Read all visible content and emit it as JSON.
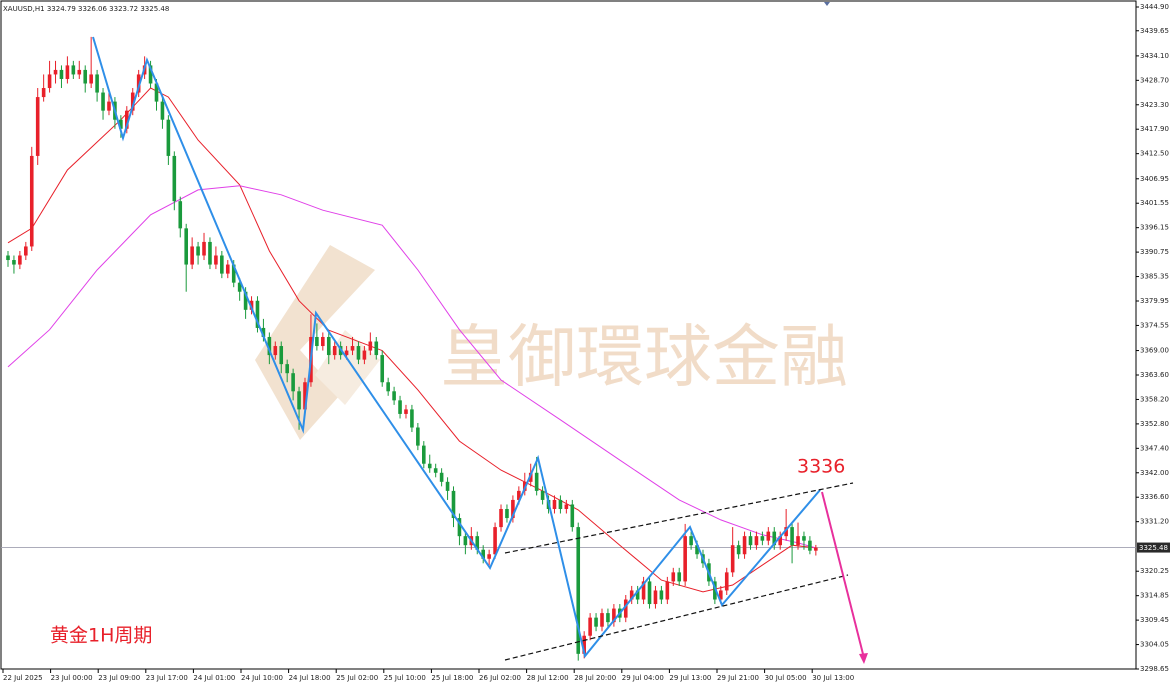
{
  "chart_data": {
    "type": "candlestick",
    "title": "XAUUSD,H1  3324.79 3326.06 3323.72 3325.48",
    "annotations": [
      "3336",
      "黄金1H周期"
    ],
    "watermark": "皇御環球金融",
    "up_color": "#e8202a",
    "down_color": "#1a9a3c",
    "ylim": [
      3298.65,
      3444.9
    ],
    "yticks": [
      {
        "value": 3444.9,
        "label": "3444.90"
      },
      3439.65,
      {
        "value": 3434.1,
        "label": "3434.10"
      },
      {
        "value": 3428.7,
        "label": "3428.70"
      },
      {
        "value": 3423.3,
        "label": "3423.30"
      },
      {
        "value": 3417.9,
        "label": "3417.90"
      },
      {
        "value": 3412.5,
        "label": "3412.50"
      },
      3406.95,
      3401.55,
      3396.15,
      3390.75,
      3385.35,
      3379.95,
      3374.55,
      {
        "value": 3369,
        "label": "3369.00"
      },
      {
        "value": 3363.6,
        "label": "3363.60"
      },
      {
        "value": 3358.2,
        "label": "3358.20"
      },
      {
        "value": 3352.8,
        "label": "3352.80"
      },
      {
        "value": 3347.4,
        "label": "3347.40"
      },
      {
        "value": 3342,
        "label": "3342.00"
      },
      {
        "value": 3336.6,
        "label": "3336.60"
      },
      {
        "value": 3331.2,
        "label": "3331.20"
      },
      3320.25,
      3314.85,
      3309.45,
      3304.05,
      3298.65
    ],
    "last_price": 3325.48,
    "x_labels": [
      "22 Jul 2025",
      "23 Jul 00:00",
      "23 Jul 09:00",
      "23 Jul 17:00",
      "24 Jul 01:00",
      "24 Jul 10:00",
      "24 Jul 18:00",
      "25 Jul 02:00",
      "25 Jul 10:00",
      "25 Jul 18:00",
      "26 Jul 02:00",
      "28 Jul 12:00",
      "28 Jul 20:00",
      "29 Jul 04:00",
      "29 Jul 13:00",
      "29 Jul 21:00",
      "30 Jul 05:00",
      "30 Jul 13:00"
    ],
    "ohlc": [
      [
        3390,
        3391,
        3387.5,
        3389
      ],
      [
        3389,
        3390,
        3386,
        3388
      ],
      [
        3388,
        3391,
        3387,
        3390
      ],
      [
        3390,
        3393,
        3389,
        3392
      ],
      [
        3392,
        3414,
        3391,
        3412
      ],
      [
        3412,
        3427,
        3410,
        3425
      ],
      [
        3425,
        3430,
        3424,
        3427
      ],
      [
        3427,
        3433,
        3426,
        3430
      ],
      [
        3430,
        3433,
        3428,
        3431
      ],
      [
        3431,
        3432,
        3427,
        3429
      ],
      [
        3429,
        3434,
        3428,
        3432
      ],
      [
        3432,
        3433,
        3429,
        3430
      ],
      [
        3430,
        3433,
        3429,
        3431
      ],
      [
        3431,
        3432,
        3426,
        3428
      ],
      [
        3428,
        3438.3,
        3427,
        3430
      ],
      [
        3430,
        3431,
        3424,
        3426
      ],
      [
        3426,
        3427,
        3420,
        3422
      ],
      [
        3422,
        3426,
        3421,
        3424
      ],
      [
        3424,
        3425,
        3418,
        3420
      ],
      [
        3420,
        3421,
        3416,
        3418
      ],
      [
        3418,
        3423,
        3417,
        3422
      ],
      [
        3422,
        3427,
        3421,
        3426
      ],
      [
        3426,
        3431,
        3425,
        3430
      ],
      [
        3430,
        3434,
        3429,
        3432
      ],
      [
        3432,
        3433,
        3427,
        3428
      ],
      [
        3428,
        3429,
        3422,
        3424
      ],
      [
        3424,
        3425,
        3418,
        3420
      ],
      [
        3420,
        3421,
        3410,
        3412
      ],
      [
        3412,
        3413,
        3400,
        3402
      ],
      [
        3402,
        3403,
        3394,
        3396
      ],
      [
        3396,
        3397,
        3382,
        3388
      ],
      [
        3388,
        3394,
        3387,
        3392
      ],
      [
        3392,
        3393,
        3388,
        3390
      ],
      [
        3390,
        3395,
        3389,
        3393
      ],
      [
        3393,
        3394,
        3387,
        3388
      ],
      [
        3388,
        3392,
        3387,
        3390
      ],
      [
        3390,
        3391,
        3385,
        3386
      ],
      [
        3386,
        3389,
        3385,
        3388
      ],
      [
        3388,
        3389,
        3383,
        3384
      ],
      [
        3384,
        3385,
        3380,
        3382
      ],
      [
        3382,
        3383,
        3376,
        3378
      ],
      [
        3378,
        3381,
        3377,
        3380
      ],
      [
        3380,
        3381,
        3373,
        3374
      ],
      [
        3374,
        3376,
        3371,
        3372
      ],
      [
        3372,
        3373,
        3366,
        3368
      ],
      [
        3368,
        3371,
        3367,
        3370
      ],
      [
        3370,
        3371,
        3364,
        3366
      ],
      [
        3366,
        3367,
        3362,
        3364
      ],
      [
        3364,
        3365,
        3358,
        3360
      ],
      [
        3360,
        3361,
        3351.5,
        3356
      ],
      [
        3356,
        3363,
        3355,
        3362
      ],
      [
        3362,
        3377,
        3361,
        3372
      ],
      [
        3372,
        3375,
        3369,
        3370
      ],
      [
        3370,
        3373,
        3369,
        3372
      ],
      [
        3372,
        3373,
        3366,
        3368
      ],
      [
        3368,
        3371,
        3367,
        3370
      ],
      [
        3370,
        3371,
        3367,
        3368
      ],
      [
        3368,
        3370,
        3367,
        3369
      ],
      [
        3369,
        3372,
        3368,
        3370
      ],
      [
        3370,
        3371,
        3366,
        3367
      ],
      [
        3367,
        3370,
        3366,
        3369
      ],
      [
        3369,
        3373,
        3368,
        3371
      ],
      [
        3371,
        3372,
        3367,
        3368
      ],
      [
        3368,
        3369,
        3361,
        3362
      ],
      [
        3362,
        3363,
        3359,
        3360
      ],
      [
        3360,
        3361,
        3357,
        3358
      ],
      [
        3358,
        3359,
        3354,
        3355
      ],
      [
        3355,
        3357,
        3354,
        3356
      ],
      [
        3356,
        3357,
        3351,
        3352
      ],
      [
        3352,
        3353,
        3347,
        3348
      ],
      [
        3348,
        3349,
        3343,
        3344
      ],
      [
        3344,
        3346,
        3342,
        3343
      ],
      [
        3343,
        3344,
        3341,
        3342
      ],
      [
        3342,
        3343,
        3339,
        3340
      ],
      [
        3340,
        3341,
        3336,
        3338
      ],
      [
        3338,
        3339,
        3330,
        3332
      ],
      [
        3332,
        3333,
        3326,
        3328
      ],
      [
        3328,
        3329,
        3324,
        3326
      ],
      [
        3326,
        3330,
        3325,
        3328
      ],
      [
        3328,
        3329,
        3324,
        3325
      ],
      [
        3325,
        3326,
        3322,
        3323
      ],
      [
        3323,
        3325,
        3321.5,
        3324
      ],
      [
        3324,
        3331,
        3323,
        3330
      ],
      [
        3330,
        3335,
        3329,
        3334
      ],
      [
        3334,
        3335,
        3331,
        3332
      ],
      [
        3332,
        3337,
        3331,
        3336
      ],
      [
        3336,
        3339,
        3335,
        3338
      ],
      [
        3338,
        3342,
        3337,
        3340
      ],
      [
        3340,
        3344,
        3339,
        3342
      ],
      [
        3342,
        3345.5,
        3337,
        3338
      ],
      [
        3338,
        3339,
        3335,
        3336
      ],
      [
        3336,
        3337,
        3333,
        3334
      ],
      [
        3334,
        3337,
        3333,
        3336
      ],
      [
        3336,
        3337,
        3333,
        3334
      ],
      [
        3334,
        3336,
        3333,
        3335
      ],
      [
        3335,
        3336,
        3329,
        3330
      ],
      [
        3330,
        3331,
        3300.5,
        3302
      ],
      [
        3302,
        3307,
        3301,
        3306
      ],
      [
        3306,
        3311,
        3305,
        3310
      ],
      [
        3310,
        3311,
        3307,
        3308
      ],
      [
        3308,
        3312,
        3307,
        3311
      ],
      [
        3311,
        3312,
        3308,
        3309
      ],
      [
        3309,
        3313,
        3308,
        3312
      ],
      [
        3312,
        3313,
        3309,
        3310
      ],
      [
        3310,
        3315,
        3309,
        3314
      ],
      [
        3314,
        3317,
        3313,
        3316
      ],
      [
        3316,
        3317,
        3313,
        3314
      ],
      [
        3314,
        3319,
        3313,
        3318
      ],
      [
        3318,
        3319,
        3312,
        3313
      ],
      [
        3313,
        3317,
        3312,
        3316
      ],
      [
        3316,
        3317,
        3313,
        3314
      ],
      [
        3314,
        3319,
        3313,
        3318
      ],
      [
        3318,
        3321,
        3317,
        3320
      ],
      [
        3320,
        3321,
        3317,
        3318
      ],
      [
        3318,
        3330.7,
        3317,
        3328
      ],
      [
        3328,
        3329,
        3325,
        3326
      ],
      [
        3326,
        3327,
        3323,
        3324
      ],
      [
        3324,
        3325,
        3321,
        3322
      ],
      [
        3322,
        3323,
        3317,
        3318
      ],
      [
        3318,
        3319,
        3313,
        3314
      ],
      [
        3314,
        3317,
        3313,
        3316
      ],
      [
        3316,
        3321,
        3315,
        3320
      ],
      [
        3320,
        3330,
        3319,
        3326
      ],
      [
        3326,
        3327,
        3323,
        3324
      ],
      [
        3324,
        3329,
        3323,
        3328
      ],
      [
        3328,
        3329,
        3325,
        3326
      ],
      [
        3326,
        3329,
        3325,
        3328
      ],
      [
        3328,
        3329,
        3326,
        3327
      ],
      [
        3327,
        3330,
        3326,
        3329
      ],
      [
        3329,
        3330,
        3325,
        3326
      ],
      [
        3326,
        3329,
        3325,
        3328
      ],
      [
        3328,
        3334,
        3327,
        3330
      ],
      [
        3330,
        3331,
        3322,
        3326
      ],
      [
        3326,
        3331,
        3325,
        3328
      ],
      [
        3328,
        3329,
        3325,
        3327
      ],
      [
        3327,
        3328,
        3324,
        3324.79
      ],
      [
        3324.79,
        3326.06,
        3323.72,
        3325.48
      ]
    ],
    "series": [
      {
        "color": "#e8202a",
        "x": [
          0,
          4,
          10,
          19,
          24,
          27,
          32,
          39,
          44,
          49,
          54,
          63,
          69,
          76,
          83,
          90,
          96,
          103,
          110,
          117,
          122,
          127,
          132,
          136
        ],
        "values": [
          3392.8,
          3396,
          3408.9,
          3420,
          3427,
          3425,
          3415.5,
          3405.6,
          3391,
          3380,
          3373.5,
          3369,
          3360.3,
          3349,
          3342.6,
          3338,
          3333.8,
          3326,
          3318.3,
          3315.7,
          3317.2,
          3321.6,
          3326,
          3325.4
        ]
      },
      {
        "color": "#e040e8",
        "x": [
          0,
          7,
          15,
          24,
          32,
          39,
          46,
          53,
          63,
          69,
          76,
          83,
          93,
          103,
          113,
          120,
          127,
          133,
          136
        ],
        "values": [
          3365.4,
          3373.6,
          3386.8,
          3399,
          3404.5,
          3405.4,
          3403.4,
          3400,
          3396.7,
          3386.8,
          3373.6,
          3362.5,
          3353.7,
          3344.8,
          3336,
          3331.6,
          3328.3,
          3326.5,
          3325.4
        ]
      }
    ]
  }
}
